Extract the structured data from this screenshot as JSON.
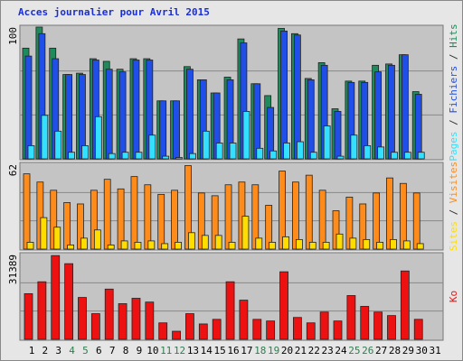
{
  "title": "Acces journalier pour Avril 2015",
  "chart_data": [
    {
      "type": "bar",
      "ylim": [
        0,
        100
      ],
      "yticks": [
        100
      ],
      "grid": [
        33.3,
        66.7
      ],
      "legend_separator": " / ",
      "series": [
        {
          "name": "Hits",
          "color": "#1f8a5c",
          "values": [
            84,
            100,
            84,
            64,
            65,
            76,
            74,
            68,
            76,
            76,
            44,
            44,
            70,
            60,
            50,
            62,
            91,
            57,
            48,
            99,
            95,
            61,
            73,
            38,
            59,
            59,
            71,
            72,
            79,
            51,
            null
          ]
        },
        {
          "name": "Fichiers",
          "color": "#1f4fe8",
          "values": [
            78,
            95,
            76,
            64,
            64,
            75,
            68,
            66,
            75,
            75,
            44,
            44,
            68,
            60,
            50,
            60,
            88,
            57,
            39,
            97,
            94,
            60,
            71,
            36,
            58,
            58,
            66,
            71,
            79,
            49,
            null
          ]
        },
        {
          "name": "Pages",
          "color": "#33e0ff",
          "values": [
            10,
            33,
            21,
            5,
            10,
            32,
            4,
            5,
            5,
            18,
            2,
            1,
            4,
            21,
            12,
            12,
            36,
            8,
            6,
            12,
            13,
            5,
            25,
            2,
            18,
            10,
            9,
            5,
            5,
            5,
            null
          ]
        }
      ]
    },
    {
      "type": "bar",
      "ylim": [
        0,
        62
      ],
      "yticks": [
        62
      ],
      "grid": [
        20.7,
        41.3
      ],
      "legend_separator": " / ",
      "series": [
        {
          "name": "Visites",
          "color": "#ff8c1a",
          "values": [
            55,
            49,
            43,
            34,
            33,
            43,
            51,
            44,
            53,
            47,
            40,
            43,
            61,
            41,
            39,
            47,
            49,
            47,
            32,
            57,
            49,
            54,
            43,
            28,
            38,
            33,
            41,
            52,
            48,
            41,
            null
          ]
        },
        {
          "name": "Sites",
          "color": "#ffdd00",
          "values": [
            5,
            23,
            16,
            3,
            8,
            14,
            3,
            6,
            5,
            6,
            4,
            5,
            12,
            10,
            10,
            5,
            24,
            8,
            5,
            9,
            7,
            5,
            5,
            11,
            8,
            7,
            5,
            7,
            6,
            4,
            null
          ]
        }
      ]
    },
    {
      "type": "bar",
      "ylim": [
        0,
        31389
      ],
      "yticks": [
        31389
      ],
      "grid": [
        10463,
        20926
      ],
      "categories": [
        "1",
        "2",
        "3",
        "4",
        "5",
        "6",
        "7",
        "8",
        "9",
        "10",
        "11",
        "12",
        "13",
        "14",
        "15",
        "16",
        "17",
        "18",
        "19",
        "20",
        "21",
        "22",
        "23",
        "24",
        "25",
        "26",
        "27",
        "28",
        "29",
        "30",
        "31"
      ],
      "category_colors": [
        "#000",
        "#000",
        "#000",
        "#2e7d4f",
        "#2e7d4f",
        "#000",
        "#000",
        "#000",
        "#000",
        "#000",
        "#2e7d4f",
        "#2e7d4f",
        "#000",
        "#000",
        "#000",
        "#000",
        "#000",
        "#2e7d4f",
        "#2e7d4f",
        "#000",
        "#000",
        "#000",
        "#000",
        "#000",
        "#2e7d4f",
        "#2e7d4f",
        "#000",
        "#000",
        "#000",
        "#000",
        "#000"
      ],
      "series": [
        {
          "name": "Ko",
          "color": "#ee1111",
          "values": [
            16900,
            21300,
            31000,
            28000,
            15500,
            9500,
            18600,
            13200,
            15200,
            13800,
            6100,
            3000,
            9500,
            5700,
            7400,
            21300,
            14500,
            7400,
            6800,
            25000,
            8100,
            6100,
            10100,
            6800,
            16200,
            12200,
            10100,
            8800,
            25300,
            7400,
            null
          ]
        }
      ]
    }
  ]
}
